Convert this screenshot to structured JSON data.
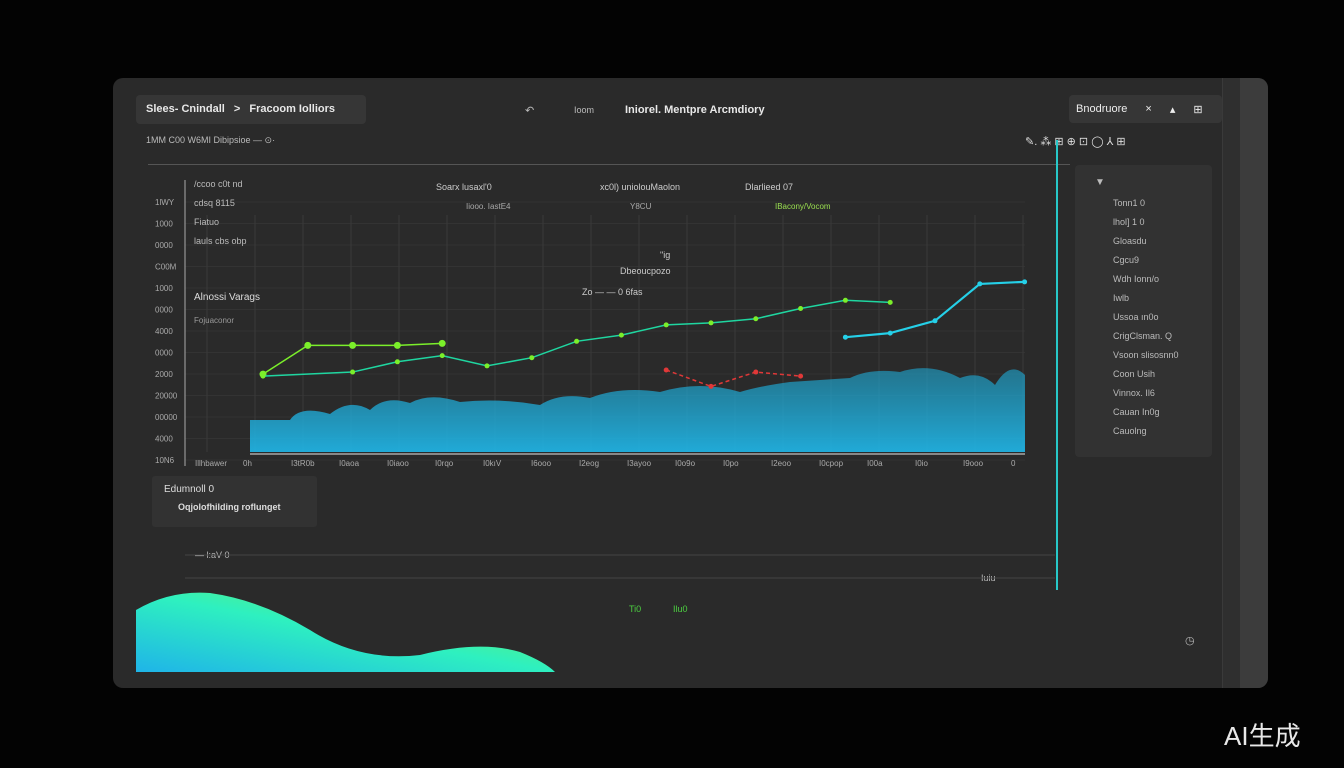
{
  "header": {
    "breadcrumb": [
      "Slees- Cnindall",
      ">",
      "Fracoom Iolliors"
    ],
    "nav": [
      "Ioom",
      "Iniorel. Mentpre Arcmdiory"
    ],
    "subtitle": "1MM C00  W6MI  Dibipsioe  — ⊙·",
    "right_box": {
      "label": "Bnodruore",
      "icons": [
        "close-icon",
        "triangle-icon",
        "grid-icon"
      ]
    },
    "toolbar": "✎.  ⁂  ⊞  ⊕  ⊡ ◯ ⅄ ⊞"
  },
  "chart": {
    "legend_left": [
      "/ccoo c0t nd",
      "cdsq 8115",
      "Fiatuo",
      "lauls cbs obp"
    ],
    "headers": [
      {
        "title": "Soarx lusaxl'0",
        "sub": "Iiooo. IastE4"
      },
      {
        "title": "xc0l) uniolouMaolon",
        "sub": "Y8CU"
      },
      {
        "title": "Dlarlieed 07",
        "sub": "IBacony/Vocom"
      }
    ],
    "center_note": [
      "\"ig",
      "Dbeoucpozo",
      "Zo —   — 0 6fas"
    ],
    "side_title": "Alnossi Varags",
    "side_sub": "Fojuaconor",
    "y_ticks": [
      "1lWY",
      "1000",
      "0000",
      "C00M",
      "1000",
      "0000",
      "4000",
      "0000",
      "2000",
      "20000",
      "00000",
      "4000",
      "10N6"
    ],
    "x_ticks": [
      "Illhbawer",
      "0h",
      "I3tR0b",
      "I0aoa",
      "I0iaoo",
      "I0rqo",
      "I0kıV",
      "I6ooo",
      "I2eog",
      "I3ayoo",
      "I0o9o",
      "I0po",
      "I2eoo",
      "I0cpop",
      "I00a",
      "I0io",
      "I9ooo",
      "0"
    ],
    "colors": {
      "area": "#1fb4e0",
      "green": "#7bef2a",
      "teal": "#1fd6a0",
      "cyan": "#25d0e8",
      "red": "#e03838"
    },
    "series": [
      {
        "color": "green",
        "values": [
          [
            0,
            38
          ],
          [
            1,
            52
          ],
          [
            2,
            52
          ],
          [
            3,
            52
          ],
          [
            4,
            53
          ]
        ]
      },
      {
        "color": "teal",
        "values": [
          [
            0,
            37
          ],
          [
            2,
            39
          ],
          [
            3,
            44
          ],
          [
            4,
            47
          ],
          [
            5,
            42
          ],
          [
            6,
            46
          ],
          [
            7,
            54
          ],
          [
            8,
            57
          ],
          [
            9,
            62
          ],
          [
            10,
            63
          ],
          [
            11,
            65
          ],
          [
            12,
            70
          ],
          [
            13,
            74
          ],
          [
            14,
            73
          ]
        ]
      },
      {
        "color": "cyan",
        "values": [
          [
            13,
            56
          ],
          [
            14,
            58
          ],
          [
            15,
            64
          ],
          [
            16,
            82
          ],
          [
            17,
            83
          ]
        ]
      },
      {
        "color": "red",
        "values": [
          [
            9,
            40
          ],
          [
            10,
            32
          ],
          [
            11,
            39
          ],
          [
            12,
            37
          ]
        ]
      }
    ]
  },
  "label_box": {
    "title": "Edumnoll 0",
    "sub": "Oqjolofhilding roflunget"
  },
  "bottom": {
    "left": "— l:aV 0",
    "mid": [
      "Ti0",
      "Ilu0"
    ],
    "right": "Iuiu"
  },
  "right_panel": {
    "items": [
      "Tonn1 0",
      "lhol] 1 0",
      "Gloasdu",
      "Cgcu9",
      "Wdh Ionn/o",
      "Iwlb",
      "Ussoa ın0o",
      "CrigClsman. Q",
      "Vsoon slisosnn0",
      "Coon Usih",
      "Vinnox. Il6",
      "Cauan In0g",
      "Cauolng"
    ]
  },
  "watermark": "AI生成"
}
